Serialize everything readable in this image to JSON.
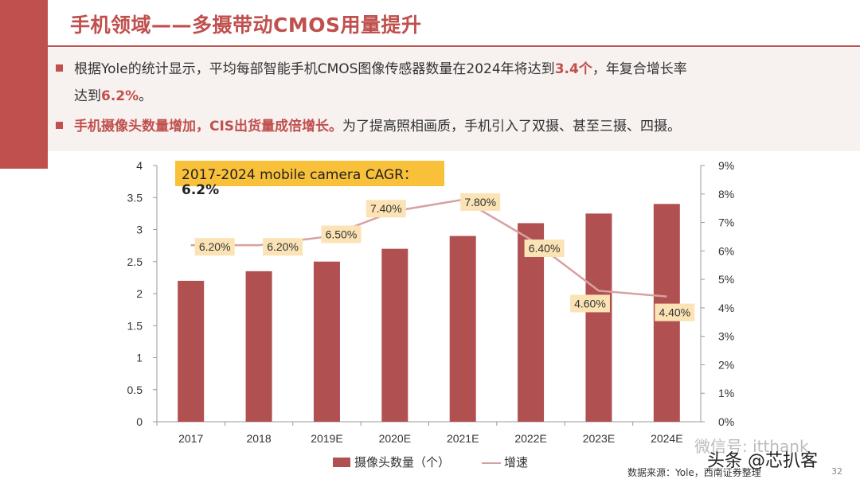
{
  "header": {
    "title": "手机领域——多摄带动CMOS用量提升"
  },
  "bullets": {
    "b1_prefix": "根据Yole的统计显示，平均每部智能手机CMOS图像传感器数量在2024年将达到",
    "b1_em1": "3.4个",
    "b1_suffix": "，年复合增长率",
    "b1_line2_prefix": "达到",
    "b1_em2": "6.2%",
    "b1_line2_suffix": "。",
    "b2_em": "手机摄像头数量增加，CIS出货量成倍增长。",
    "b2_rest": "为了提高照相画质，手机引入了双摄、甚至三摄、四摄。"
  },
  "annotation": {
    "cagr_label": "2017-2024 mobile camera CAGR：",
    "cagr_value": "6.2%"
  },
  "legend": {
    "bar_label": "摄像头数量（个）",
    "line_label": "增速"
  },
  "watermark": {
    "text1": "微信号: itthank",
    "text2": "头条 @芯扒客"
  },
  "source": "数据来源：Yole，西南证券整理",
  "page_number": "32",
  "colors": {
    "accent": "#c0504d",
    "bar": "#b05050",
    "line": "#d9a0a0",
    "label_bg": "#fbe3b5",
    "cagr_bg": "#f9c13a"
  },
  "chart_data": {
    "type": "bar",
    "categories": [
      "2017",
      "2018",
      "2019E",
      "2020E",
      "2021E",
      "2022E",
      "2023E",
      "2024E"
    ],
    "series": [
      {
        "name": "摄像头数量（个）",
        "type": "bar",
        "axis": "left",
        "values": [
          2.2,
          2.35,
          2.5,
          2.7,
          2.9,
          3.1,
          3.25,
          3.4
        ]
      },
      {
        "name": "增速",
        "type": "line",
        "axis": "right",
        "values": [
          6.2,
          6.2,
          6.5,
          7.4,
          7.8,
          6.4,
          4.6,
          4.4
        ],
        "labels": [
          "6.20%",
          "6.20%",
          "6.50%",
          "7.40%",
          "7.80%",
          "6.40%",
          "4.60%",
          "4.40%"
        ]
      }
    ],
    "ylim": [
      0,
      4
    ],
    "yticks": [
      "0",
      "0.5",
      "1",
      "1.5",
      "2",
      "2.5",
      "3",
      "3.5",
      "4"
    ],
    "y2lim": [
      0,
      9
    ],
    "y2ticks": [
      "0%",
      "1%",
      "2%",
      "3%",
      "4%",
      "5%",
      "6%",
      "7%",
      "8%",
      "9%"
    ],
    "legend_position": "bottom",
    "grid": false
  }
}
